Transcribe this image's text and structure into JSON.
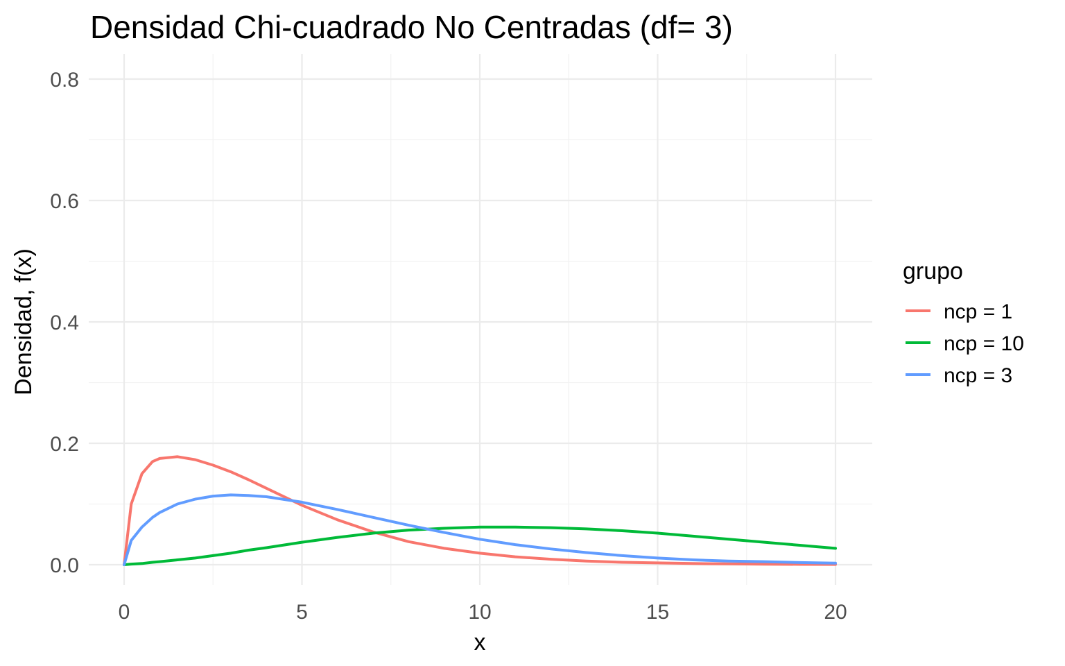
{
  "chart_data": {
    "type": "line",
    "title": "Densidad Chi-cuadrado No Centradas (df= 3)",
    "xlabel": "x",
    "ylabel": "Densidad, f(x)",
    "xlim": [
      0,
      20
    ],
    "ylim": [
      0,
      0.8
    ],
    "x_ticks": [
      0,
      5,
      10,
      15,
      20
    ],
    "x_tick_labels": [
      "0",
      "5",
      "10",
      "15",
      "20"
    ],
    "y_ticks": [
      0,
      0.2,
      0.4,
      0.6,
      0.8
    ],
    "y_tick_labels": [
      "0.0",
      "0.2",
      "0.4",
      "0.6",
      "0.8"
    ],
    "grid": true,
    "legend": {
      "title": "grupo",
      "position": "right"
    },
    "x": [
      0,
      0.2,
      0.5,
      0.8,
      1,
      1.5,
      2,
      2.5,
      3,
      3.5,
      4,
      5,
      6,
      7,
      8,
      9,
      10,
      11,
      12,
      13,
      14,
      15,
      16,
      17,
      18,
      19,
      20
    ],
    "series": [
      {
        "name": "ncp = 1",
        "color": "#F8766D",
        "values": [
          0,
          0.1,
          0.15,
          0.17,
          0.175,
          0.178,
          0.173,
          0.164,
          0.153,
          0.14,
          0.126,
          0.098,
          0.074,
          0.054,
          0.038,
          0.027,
          0.019,
          0.013,
          0.009,
          0.006,
          0.004,
          0.003,
          0.002,
          0.0014,
          0.0009,
          0.0006,
          0.0004
        ]
      },
      {
        "name": "ncp = 10",
        "color": "#00BA38",
        "values": [
          0,
          0.001,
          0.002,
          0.004,
          0.005,
          0.008,
          0.011,
          0.015,
          0.019,
          0.024,
          0.028,
          0.037,
          0.045,
          0.052,
          0.057,
          0.06,
          0.062,
          0.062,
          0.061,
          0.059,
          0.056,
          0.052,
          0.047,
          0.042,
          0.037,
          0.032,
          0.027
        ]
      },
      {
        "name": "ncp = 3",
        "color": "#619CFF",
        "values": [
          0,
          0.04,
          0.062,
          0.078,
          0.086,
          0.1,
          0.108,
          0.113,
          0.115,
          0.114,
          0.112,
          0.103,
          0.091,
          0.078,
          0.065,
          0.053,
          0.042,
          0.033,
          0.026,
          0.02,
          0.015,
          0.011,
          0.008,
          0.006,
          0.005,
          0.0035,
          0.0025
        ]
      }
    ]
  }
}
